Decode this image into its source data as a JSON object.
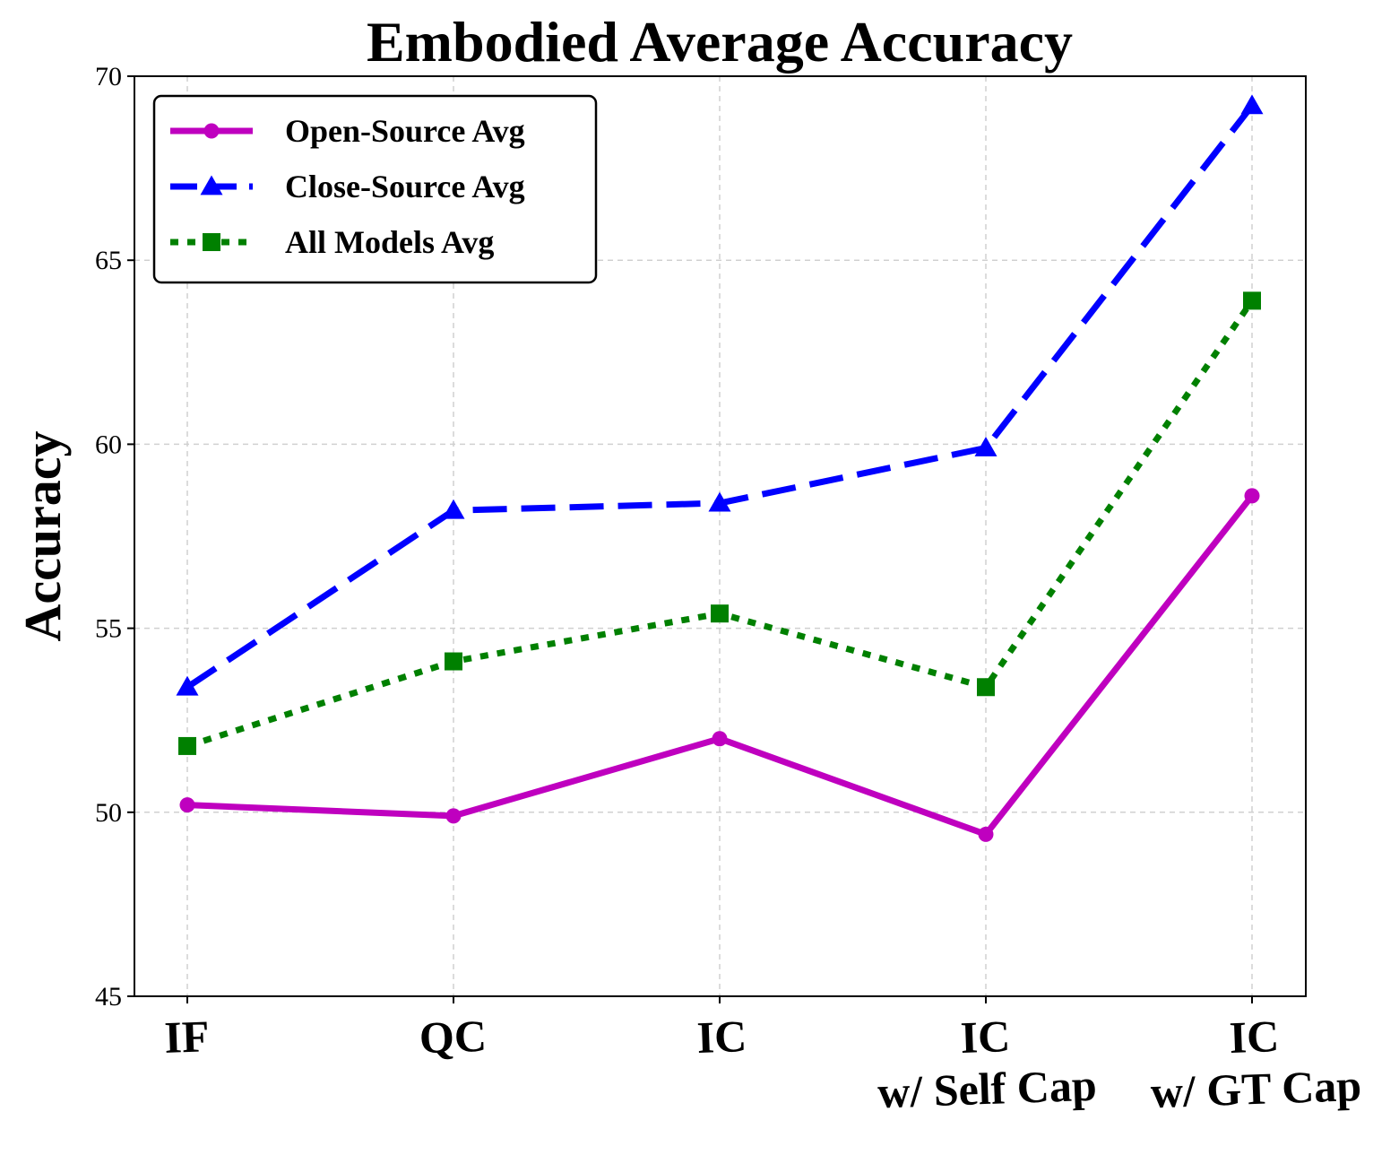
{
  "chart_data": {
    "type": "line",
    "title": "Embodied Average Accuracy",
    "xlabel": "",
    "ylabel": "Accuracy",
    "ylim": [
      45,
      70
    ],
    "yticks": [
      45,
      50,
      55,
      60,
      65,
      70
    ],
    "grid": true,
    "legend_position": "top-left",
    "categories": [
      [
        "IF"
      ],
      [
        "QC"
      ],
      [
        "IC"
      ],
      [
        "IC",
        "w/ Self Cap"
      ],
      [
        "IC",
        "w/ GT Cap"
      ]
    ],
    "series": [
      {
        "name": "Open-Source Avg",
        "color": "#bf00bf",
        "linestyle": "solid",
        "marker": "circle",
        "values": [
          50.2,
          49.9,
          52.0,
          49.4,
          58.6
        ]
      },
      {
        "name": "Close-Source Avg",
        "color": "#0000ff",
        "linestyle": "dashed",
        "marker": "triangle",
        "values": [
          53.4,
          58.2,
          58.4,
          59.9,
          69.2
        ]
      },
      {
        "name": "All Models Avg",
        "color": "#008000",
        "linestyle": "dotted",
        "marker": "square",
        "values": [
          51.8,
          54.1,
          55.4,
          53.4,
          63.9
        ]
      }
    ]
  }
}
